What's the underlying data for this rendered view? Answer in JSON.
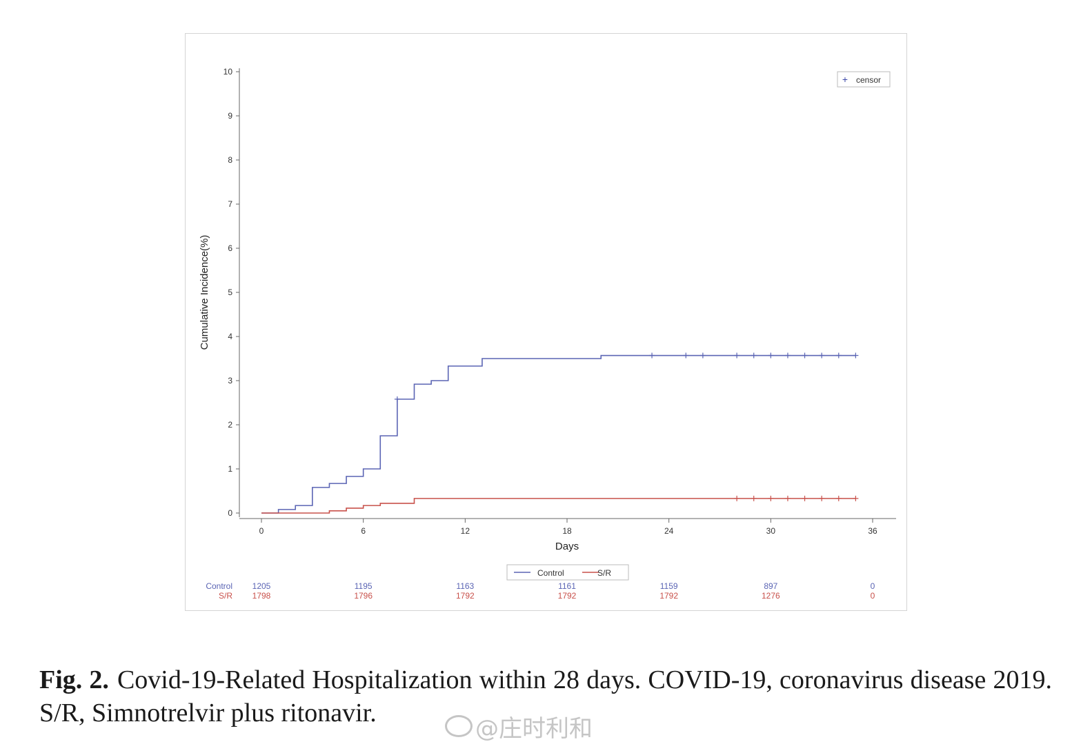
{
  "chart_data": {
    "type": "line",
    "step": true,
    "title": "",
    "xlabel": "Days",
    "ylabel": "Cumulative Incidence(%)",
    "xlim": [
      0,
      36
    ],
    "ylim": [
      0,
      10
    ],
    "x_ticks": [
      "0",
      "6",
      "12",
      "18",
      "24",
      "30",
      "36"
    ],
    "y_ticks": [
      "0",
      "1",
      "2",
      "3",
      "4",
      "5",
      "6",
      "7",
      "8",
      "9",
      "10"
    ],
    "grid": false,
    "censor_legend": {
      "symbol": "+",
      "label": "censor",
      "placement": "top-right"
    },
    "series_legend_placement": "bottom-center",
    "series": [
      {
        "name": "Control",
        "color": "#5a64b4",
        "points": [
          [
            0,
            0
          ],
          [
            1,
            0.08
          ],
          [
            2,
            0.17
          ],
          [
            3,
            0.58
          ],
          [
            4,
            0.67
          ],
          [
            5,
            0.83
          ],
          [
            6,
            1.0
          ],
          [
            7,
            1.75
          ],
          [
            8,
            2.58
          ],
          [
            9,
            2.92
          ],
          [
            10,
            3.0
          ],
          [
            11,
            3.33
          ],
          [
            13,
            3.5
          ],
          [
            20,
            3.57
          ],
          [
            35,
            3.57
          ]
        ],
        "censor_x": [
          8,
          23,
          25,
          26,
          28,
          29,
          30,
          31,
          32,
          33,
          34,
          35
        ]
      },
      {
        "name": "S/R",
        "color": "#c8504a",
        "points": [
          [
            0,
            0
          ],
          [
            4,
            0.05
          ],
          [
            5,
            0.11
          ],
          [
            6,
            0.17
          ],
          [
            7,
            0.22
          ],
          [
            9,
            0.33
          ],
          [
            35,
            0.33
          ]
        ],
        "censor_x": [
          28,
          29,
          30,
          31,
          32,
          33,
          34,
          35
        ]
      }
    ],
    "risk_table": {
      "x": [
        0,
        6,
        12,
        18,
        24,
        30,
        36
      ],
      "rows": [
        {
          "label": "Control",
          "color": "#5a64b4",
          "values": [
            "1205",
            "1195",
            "1163",
            "1161",
            "1159",
            "897",
            "0"
          ]
        },
        {
          "label": "S/R",
          "color": "#c8504a",
          "values": [
            "1798",
            "1796",
            "1792",
            "1792",
            "1792",
            "1276",
            "0"
          ]
        }
      ]
    }
  },
  "caption": {
    "label": "Fig. 2.",
    "text": "Covid-19-Related Hospitalization within 28 days. COVID-19, coronavirus disease 2019. S/R, Simnotrelvir plus ritonavir."
  },
  "watermark": {
    "text": "@庄时利和"
  }
}
